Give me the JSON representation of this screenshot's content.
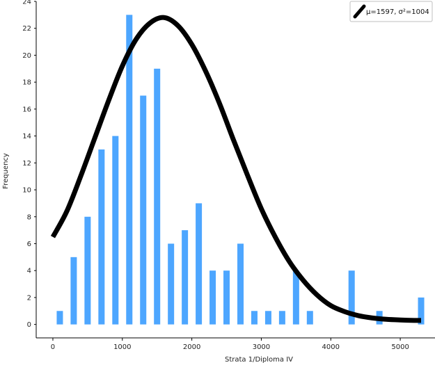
{
  "chart_data": {
    "type": "bar",
    "xlabel": "Strata 1/Diploma IV",
    "ylabel": "Frequency",
    "xlim": [
      -200,
      5500
    ],
    "ylim": [
      -1,
      24
    ],
    "x_ticks": [
      0,
      1000,
      2000,
      3000,
      4000,
      5000
    ],
    "y_ticks": [
      0,
      2,
      4,
      6,
      8,
      10,
      12,
      14,
      16,
      18,
      20,
      22,
      24
    ],
    "grid": false,
    "bar_color": "#4da6ff",
    "curve_color": "#000000",
    "legend_position": "top-right",
    "series": [
      {
        "kind": "histogram",
        "x": [
          100,
          300,
          500,
          700,
          900,
          1100,
          1300,
          1500,
          1700,
          1900,
          2100,
          2300,
          2500,
          2700,
          2900,
          3100,
          3300,
          3500,
          3700,
          4300,
          4700,
          5300
        ],
        "values": [
          1,
          5,
          8,
          13,
          14,
          23,
          17,
          19,
          6,
          7,
          9,
          4,
          4,
          6,
          1,
          1,
          1,
          4,
          1,
          4,
          1,
          2
        ]
      },
      {
        "kind": "curve",
        "name": "μ=1597, σ²=1004",
        "x": [
          0,
          200,
          400,
          600,
          800,
          1000,
          1200,
          1400,
          1600,
          1800,
          2000,
          2200,
          2400,
          2600,
          2800,
          3000,
          3200,
          3400,
          3600,
          3800,
          4000,
          4200,
          4400,
          4600,
          4800,
          5000,
          5200,
          5300
        ],
        "values": [
          6.5,
          8.4,
          11.0,
          13.8,
          16.6,
          19.2,
          21.2,
          22.4,
          22.8,
          22.2,
          20.8,
          18.8,
          16.4,
          13.7,
          11.1,
          8.6,
          6.5,
          4.7,
          3.3,
          2.2,
          1.4,
          0.95,
          0.65,
          0.48,
          0.38,
          0.33,
          0.3,
          0.3
        ]
      }
    ]
  }
}
